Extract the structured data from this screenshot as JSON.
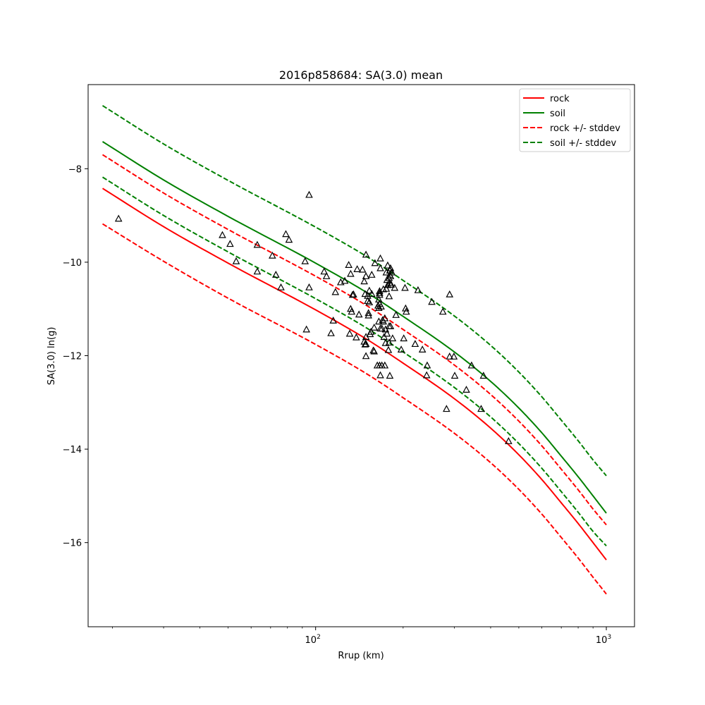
{
  "chart_data": {
    "type": "line",
    "title": "2016p858684: SA(3.0) mean",
    "xlabel": "Rrup (km)",
    "ylabel": "SA(3.0) ln(g)",
    "xscale": "log",
    "xlim": [
      16.5,
      1250
    ],
    "ylim": [
      -17.8,
      -6.2
    ],
    "x_major_ticks": [
      100,
      1000
    ],
    "x_major_tick_labels": [
      {
        "base": "10",
        "exp": "2"
      },
      {
        "base": "10",
        "exp": "3"
      }
    ],
    "x_minor_ticks": [
      20,
      30,
      40,
      50,
      60,
      70,
      80,
      90,
      200,
      300,
      400,
      500,
      600,
      700,
      800,
      900
    ],
    "y_ticks": [
      -8,
      -10,
      -12,
      -14,
      -16
    ],
    "y_tick_labels": [
      "−8",
      "−10",
      "−12",
      "−14",
      "−16"
    ],
    "grid": false,
    "legend_position": "top-right",
    "legend": [
      {
        "label": "rock",
        "color": "#ff0000",
        "style": "solid"
      },
      {
        "label": "soil",
        "color": "#008000",
        "style": "solid"
      },
      {
        "label": "rock +/- stddev",
        "color": "#ff0000",
        "style": "dashed"
      },
      {
        "label": "soil +/- stddev",
        "color": "#008000",
        "style": "dashed"
      }
    ],
    "curve_x": [
      18.5,
      30,
      50,
      100,
      150,
      200,
      300,
      400,
      500,
      600,
      700,
      800,
      900,
      1000
    ],
    "series": [
      {
        "name": "rock",
        "color": "#ff0000",
        "style": "solid",
        "y": [
          -8.42,
          -9.24,
          -10.02,
          -11.02,
          -11.65,
          -12.16,
          -12.92,
          -13.55,
          -14.12,
          -14.65,
          -15.15,
          -15.59,
          -16.0,
          -16.37
        ]
      },
      {
        "name": "rock +/- stddev",
        "color": "#ff0000",
        "style": "dashed",
        "y": [
          -7.7,
          -8.52,
          -9.3,
          -10.3,
          -10.93,
          -11.44,
          -12.2,
          -12.83,
          -13.4,
          -13.93,
          -14.43,
          -14.87,
          -15.28,
          -15.62
        ]
      },
      {
        "name": "rock +/- stddev",
        "color": "#ff0000",
        "style": "dashed",
        "y": [
          -9.18,
          -9.98,
          -10.77,
          -11.76,
          -12.39,
          -12.9,
          -13.66,
          -14.29,
          -14.86,
          -15.39,
          -15.89,
          -16.33,
          -16.74,
          -17.1
        ]
      },
      {
        "name": "soil",
        "color": "#008000",
        "style": "solid",
        "y": [
          -7.42,
          -8.24,
          -9.02,
          -10.02,
          -10.65,
          -11.16,
          -11.92,
          -12.55,
          -13.12,
          -13.65,
          -14.15,
          -14.59,
          -15.0,
          -15.37
        ]
      },
      {
        "name": "soil +/- stddev",
        "color": "#008000",
        "style": "dashed",
        "y": [
          -6.65,
          -7.47,
          -8.25,
          -9.25,
          -9.88,
          -10.39,
          -11.15,
          -11.78,
          -12.35,
          -12.88,
          -13.38,
          -13.82,
          -14.23,
          -14.57
        ]
      },
      {
        "name": "soil +/- stddev",
        "color": "#008000",
        "style": "dashed",
        "y": [
          -8.18,
          -9.0,
          -9.78,
          -10.78,
          -11.41,
          -11.92,
          -12.68,
          -13.31,
          -13.88,
          -14.41,
          -14.91,
          -15.35,
          -15.76,
          -16.07
        ]
      }
    ],
    "observations": [
      [
        21,
        -9.07
      ],
      [
        47.8,
        -9.42
      ],
      [
        50.8,
        -9.61
      ],
      [
        53.3,
        -9.98
      ],
      [
        63,
        -10.2
      ],
      [
        63,
        -9.63
      ],
      [
        71,
        -9.86
      ],
      [
        73,
        -10.27
      ],
      [
        76,
        -10.54
      ],
      [
        79,
        -9.4
      ],
      [
        81,
        -9.52
      ],
      [
        92,
        -9.98
      ],
      [
        93,
        -11.44
      ],
      [
        95,
        -10.54
      ],
      [
        95,
        -8.56
      ],
      [
        107,
        -10.2
      ],
      [
        109,
        -10.3
      ],
      [
        113,
        -11.52
      ],
      [
        115,
        -11.25
      ],
      [
        117,
        -10.64
      ],
      [
        122,
        -10.43
      ],
      [
        126,
        -10.4
      ],
      [
        130,
        -10.06
      ],
      [
        131,
        -11.53
      ],
      [
        132,
        -10.25
      ],
      [
        132,
        -11.0
      ],
      [
        133,
        -11.06
      ],
      [
        134,
        -10.7
      ],
      [
        135,
        -10.69
      ],
      [
        138,
        -11.61
      ],
      [
        139,
        -10.15
      ],
      [
        141,
        -11.12
      ],
      [
        145,
        -10.16
      ],
      [
        147,
        -10.41
      ],
      [
        147,
        -11.7
      ],
      [
        148,
        -10.68
      ],
      [
        148,
        -11.76
      ],
      [
        149,
        -10.3
      ],
      [
        149,
        -11.6
      ],
      [
        149,
        -11.75
      ],
      [
        149,
        -12.01
      ],
      [
        149,
        -9.84
      ],
      [
        151,
        -10.72
      ],
      [
        151,
        -10.83
      ],
      [
        152,
        -11.09
      ],
      [
        152,
        -11.14
      ],
      [
        153,
        -10.61
      ],
      [
        153,
        -10.86
      ],
      [
        154,
        -11.54
      ],
      [
        155,
        -11.49
      ],
      [
        156,
        -10.27
      ],
      [
        156,
        -10.68
      ],
      [
        158,
        -11.89
      ],
      [
        159,
        -11.4
      ],
      [
        159,
        -11.91
      ],
      [
        160,
        -10.02
      ],
      [
        163,
        -12.21
      ],
      [
        164,
        -10.93
      ],
      [
        165,
        -10.8
      ],
      [
        165,
        -10.98
      ],
      [
        165,
        -11.27
      ],
      [
        166,
        -10.62
      ],
      [
        166,
        -10.66
      ],
      [
        166,
        -10.7
      ],
      [
        166,
        -10.89
      ],
      [
        166,
        -12.21
      ],
      [
        167,
        -10.13
      ],
      [
        167,
        -11.42
      ],
      [
        167,
        -12.42
      ],
      [
        167,
        -9.92
      ],
      [
        168,
        -10.95
      ],
      [
        169,
        -11.42
      ],
      [
        169,
        -12.21
      ],
      [
        170,
        -11.24
      ],
      [
        171,
        -10.58
      ],
      [
        171,
        -11.27
      ],
      [
        172,
        -11.6
      ],
      [
        173,
        -11.2
      ],
      [
        173,
        -12.21
      ],
      [
        174,
        -11.44
      ],
      [
        174,
        -11.73
      ],
      [
        175,
        -10.22
      ],
      [
        175,
        -10.57
      ],
      [
        176,
        -10.38
      ],
      [
        176,
        -11.53
      ],
      [
        177,
        -10.07
      ],
      [
        177,
        -10.49
      ],
      [
        178,
        -11.88
      ],
      [
        179,
        -10.34
      ],
      [
        179,
        -10.73
      ],
      [
        179,
        -11.37
      ],
      [
        179,
        -11.72
      ],
      [
        180,
        -10.18
      ],
      [
        180,
        -10.27
      ],
      [
        180,
        -10.44
      ],
      [
        180,
        -12.43
      ],
      [
        181,
        -10.13
      ],
      [
        181,
        -10.3
      ],
      [
        181,
        -10.48
      ],
      [
        181,
        -11.37
      ],
      [
        182,
        -10.48
      ],
      [
        183,
        -10.22
      ],
      [
        184,
        -11.63
      ],
      [
        187,
        -10.55
      ],
      [
        189,
        -11.13
      ],
      [
        197,
        -11.87
      ],
      [
        201,
        -11.63
      ],
      [
        203,
        -10.55
      ],
      [
        204,
        -10.99
      ],
      [
        205,
        -11.06
      ],
      [
        220,
        -11.75
      ],
      [
        225,
        -10.6
      ],
      [
        233,
        -11.87
      ],
      [
        241,
        -12.42
      ],
      [
        242,
        -12.21
      ],
      [
        251,
        -10.85
      ],
      [
        274,
        -11.06
      ],
      [
        282,
        -13.14
      ],
      [
        289,
        -10.69
      ],
      [
        289,
        -12.02
      ],
      [
        299,
        -12.02
      ],
      [
        301,
        -12.43
      ],
      [
        330,
        -12.73
      ],
      [
        344,
        -12.21
      ],
      [
        371,
        -13.14
      ],
      [
        378,
        -12.43
      ],
      [
        461,
        -13.83
      ]
    ]
  }
}
